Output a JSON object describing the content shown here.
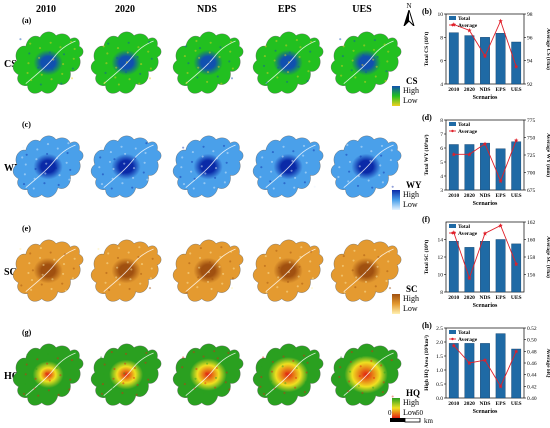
{
  "columns": [
    "2010",
    "2020",
    "NDS",
    "EPS",
    "UES"
  ],
  "rows": [
    {
      "key": "cs",
      "label": "CS",
      "panel": "(a)",
      "legend_title": "CS",
      "legend_high": "High",
      "legend_low": "Low",
      "colors": {
        "low": "#f0d020",
        "mid": "#22c020",
        "high": "#1050b0"
      }
    },
    {
      "key": "wy",
      "label": "WY",
      "panel": "(c)",
      "legend_title": "WY",
      "legend_high": "High",
      "legend_low": "Low",
      "colors": {
        "low": "#e8f4ff",
        "mid": "#4aa0ea",
        "high": "#0a2aa8"
      }
    },
    {
      "key": "sc",
      "label": "SC",
      "panel": "(e)",
      "legend_title": "SC",
      "legend_high": "High",
      "legend_low": "Low",
      "colors": {
        "low": "#fff0b0",
        "mid": "#e49a30",
        "high": "#a05010"
      }
    },
    {
      "key": "hq",
      "label": "HQ",
      "panel": "(g)",
      "legend_title": "HQ",
      "legend_high": "High",
      "legend_low": "Low",
      "colors": {
        "low": "#e02010",
        "mid": "#f0e020",
        "high": "#2aa020"
      }
    }
  ],
  "north": "N",
  "scale_bar": {
    "zero": "0",
    "max": "50",
    "unit": "km"
  },
  "chart_data": [
    {
      "panel": "(b)",
      "type": "bar",
      "categories": [
        "2010",
        "2020",
        "NDS",
        "EPS",
        "UES"
      ],
      "series": [
        {
          "name": "Total",
          "values": [
            8.4,
            8.15,
            8.0,
            8.35,
            7.6
          ],
          "axis": "left"
        },
        {
          "name": "Average",
          "values": [
            97.1,
            96.6,
            94.4,
            97.4,
            93.5
          ],
          "axis": "right"
        }
      ],
      "ylabel": "Total CS (10⁷t)",
      "ylabel2": "Average CS (t/ha)",
      "xlabel": "Scenarios",
      "ylim": [
        4,
        10
      ],
      "yticks": [
        "4",
        "6",
        "8",
        "10"
      ],
      "ylim2": [
        92,
        98
      ],
      "yticks2": [
        "92",
        "94",
        "96",
        "98"
      ],
      "colors": {
        "bar": "#1f6aa5",
        "line": "#e0202a"
      }
    },
    {
      "panel": "(d)",
      "type": "bar",
      "categories": [
        "2010",
        "2020",
        "NDS",
        "EPS",
        "UES"
      ],
      "series": [
        {
          "name": "Total",
          "values": [
            6.25,
            6.25,
            6.35,
            5.95,
            6.45
          ],
          "axis": "left"
        },
        {
          "name": "Average",
          "values": [
            726,
            726,
            741,
            688,
            746
          ],
          "axis": "right"
        }
      ],
      "ylabel": "Total WY (10⁹m³)",
      "ylabel2": "Average WY (mm)",
      "xlabel": "Scenarios",
      "ylim": [
        3,
        8
      ],
      "yticks": [
        "3",
        "4",
        "5",
        "6",
        "7",
        "8"
      ],
      "ylim2": [
        675,
        775
      ],
      "yticks2": [
        "675",
        "700",
        "725",
        "750",
        "775"
      ],
      "colors": {
        "bar": "#1f6aa5",
        "line": "#e0202a"
      }
    },
    {
      "panel": "(f)",
      "type": "bar",
      "categories": [
        "2010",
        "2020",
        "NDS",
        "EPS",
        "UES"
      ],
      "series": [
        {
          "name": "Total",
          "values": [
            13.8,
            13.1,
            13.8,
            14.0,
            13.5
          ],
          "axis": "left"
        },
        {
          "name": "Average",
          "values": [
            160.8,
            155.6,
            160.7,
            161.6,
            157.2
          ],
          "axis": "right"
        }
      ],
      "ylabel": "Total SC (10⁸t)",
      "ylabel2": "Average SC (t/ha)",
      "xlabel": "Scenarios",
      "ylim": [
        8,
        16
      ],
      "yticks": [
        "8",
        "10",
        "12",
        "14"
      ],
      "ylim2": [
        154,
        162
      ],
      "yticks2": [
        "156",
        "158",
        "160",
        "162"
      ],
      "colors": {
        "bar": "#1f6aa5",
        "line": "#e0202a"
      }
    },
    {
      "panel": "(h)",
      "type": "bar",
      "categories": [
        "2010",
        "2020",
        "NDS",
        "EPS",
        "UES"
      ],
      "series": [
        {
          "name": "Total",
          "values": [
            1.95,
            1.95,
            1.95,
            2.3,
            1.75
          ],
          "axis": "left"
        },
        {
          "name": "Average",
          "values": [
            0.49,
            0.46,
            0.465,
            0.42,
            0.48
          ],
          "axis": "right"
        }
      ],
      "ylabel": "High HQ Area (10³km²)",
      "ylabel2": "Average HQ",
      "xlabel": "Scenarios",
      "ylim": [
        0,
        2.5
      ],
      "yticks": [
        "0.0",
        "0.5",
        "1.0",
        "1.5",
        "2.0",
        "2.5"
      ],
      "ylim2": [
        0.4,
        0.52
      ],
      "yticks2": [
        "0.40",
        "0.42",
        "0.44",
        "0.46",
        "0.48",
        "0.50",
        "0.52"
      ],
      "colors": {
        "bar": "#1f6aa5",
        "line": "#e0202a"
      }
    }
  ]
}
